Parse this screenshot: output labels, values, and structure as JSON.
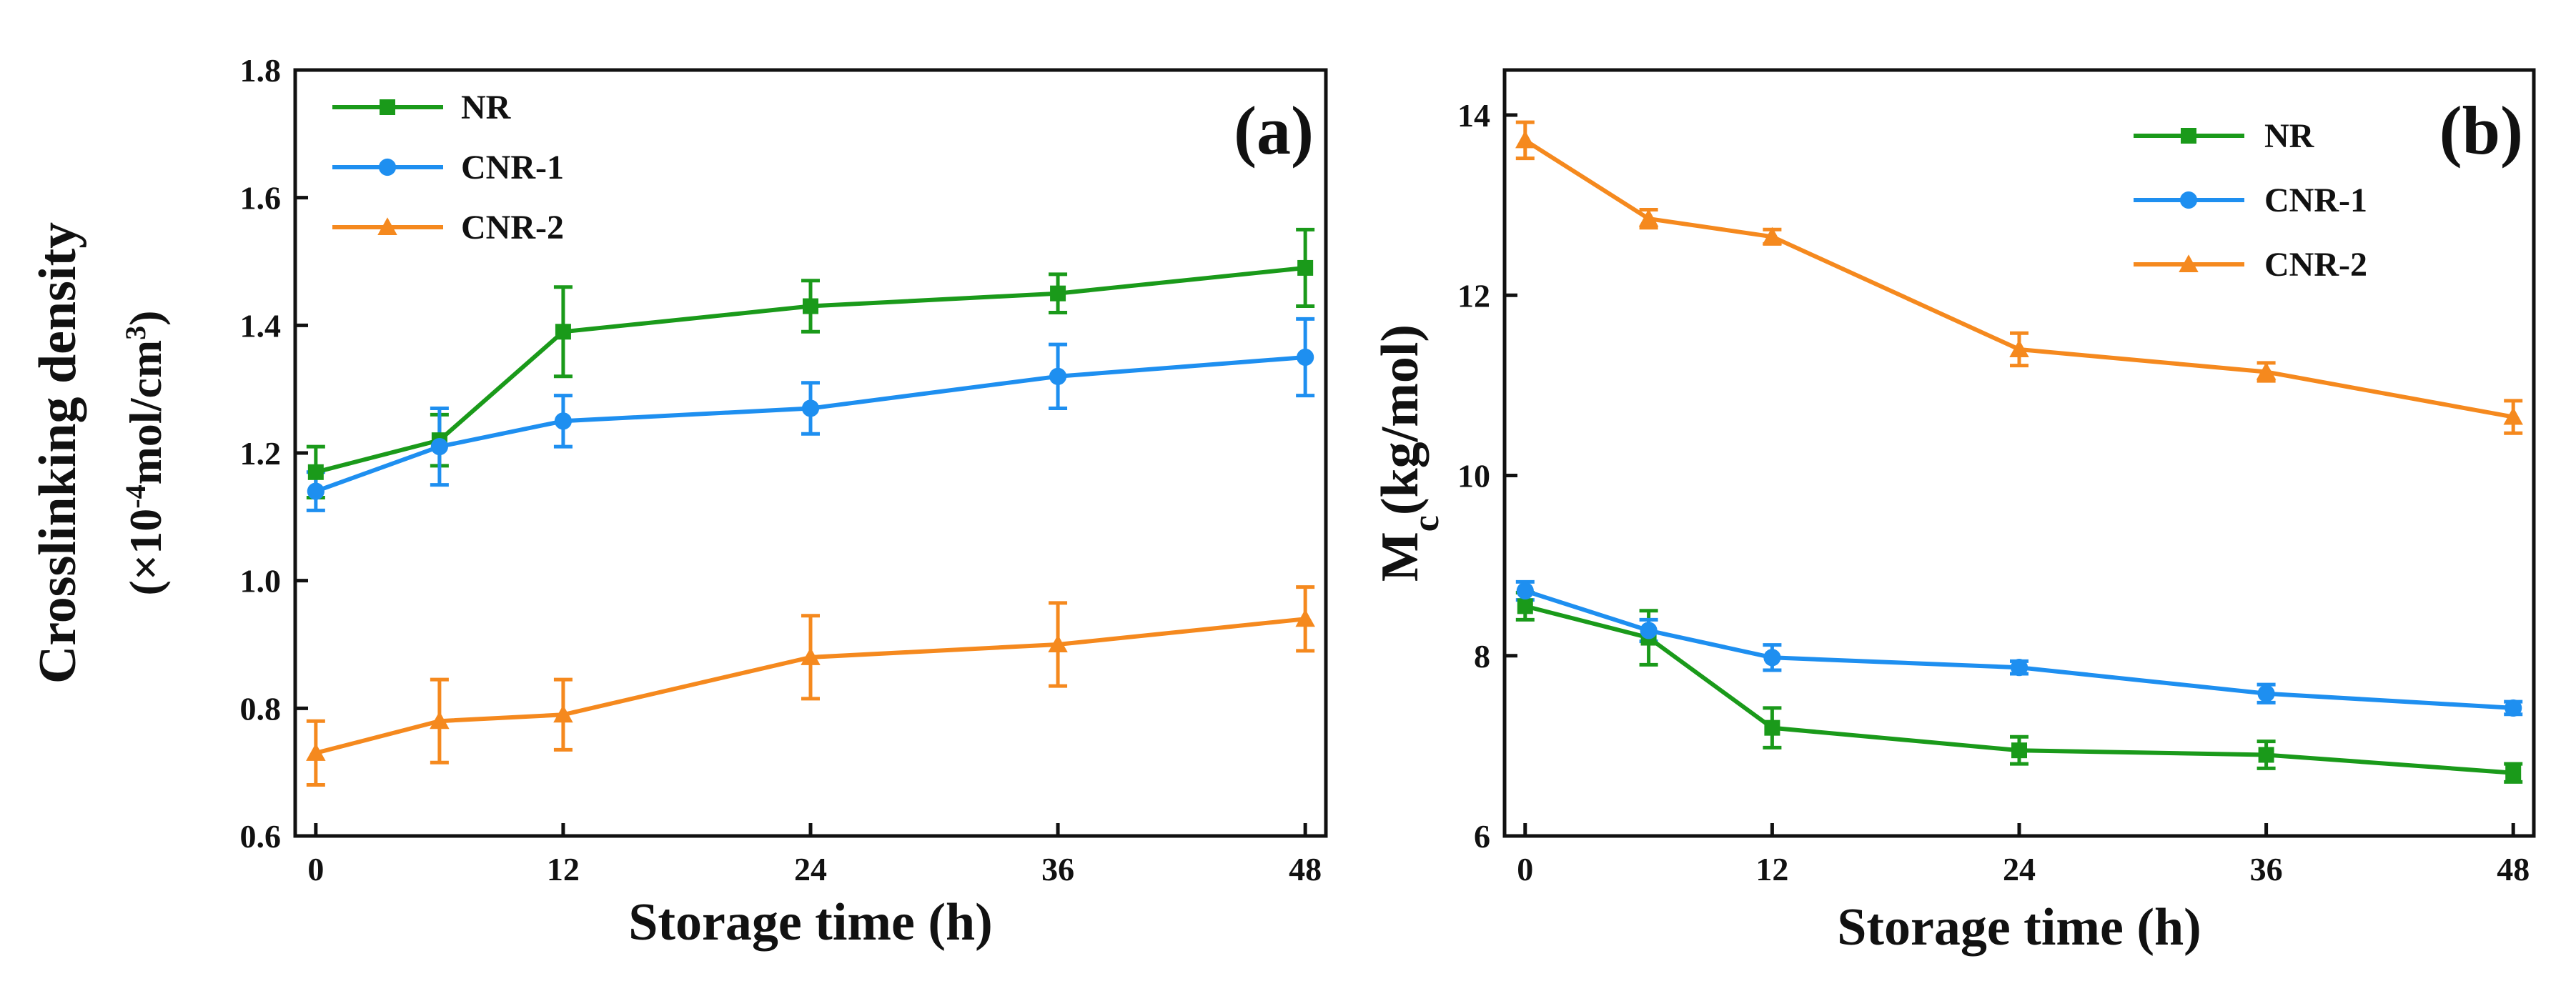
{
  "colors": {
    "NR": "#1a9a1a",
    "CNR-1": "#1e8ff0",
    "CNR-2": "#f5891e"
  },
  "chart_data": [
    {
      "type": "line",
      "panel_label": "(a)",
      "xlabel": "Storage time (h)",
      "ylabel_line1": "Crosslinking density",
      "ylabel_line2": {
        "prefix": "(×10",
        "exp": "-4",
        "mid": "mol/cm",
        "exp2": "3",
        "suffix": ")"
      },
      "xlim": [
        -1,
        49
      ],
      "ylim": [
        0.6,
        1.8
      ],
      "xticks": [
        0,
        12,
        24,
        36,
        48
      ],
      "yticks": [
        0.6,
        0.8,
        1.0,
        1.2,
        1.4,
        1.6,
        1.8
      ],
      "ytick_labels": [
        "0.6",
        "0.8",
        "1.0",
        "1.2",
        "1.4",
        "1.6",
        "1.8"
      ],
      "legend_position": "top-left",
      "x": [
        0,
        6,
        12,
        24,
        36,
        48
      ],
      "series": [
        {
          "name": "NR",
          "marker": "square",
          "values": [
            1.17,
            1.22,
            1.39,
            1.43,
            1.45,
            1.49
          ],
          "errors": [
            0.04,
            0.04,
            0.07,
            0.04,
            0.03,
            0.06
          ]
        },
        {
          "name": "CNR-1",
          "marker": "circle",
          "values": [
            1.14,
            1.21,
            1.25,
            1.27,
            1.32,
            1.35
          ],
          "errors": [
            0.03,
            0.06,
            0.04,
            0.04,
            0.05,
            0.06
          ]
        },
        {
          "name": "CNR-2",
          "marker": "triangle",
          "values": [
            0.73,
            0.78,
            0.79,
            0.88,
            0.9,
            0.94
          ],
          "errors": [
            0.05,
            0.065,
            0.055,
            0.065,
            0.065,
            0.05
          ]
        }
      ]
    },
    {
      "type": "line",
      "panel_label": "(b)",
      "xlabel": "Storage time (h)",
      "ylabel": {
        "main": "M",
        "sub": "c",
        "rest": "(kg/mol)"
      },
      "xlim": [
        -1,
        49
      ],
      "ylim": [
        6,
        14.5
      ],
      "xticks": [
        0,
        12,
        24,
        36,
        48
      ],
      "yticks": [
        6,
        8,
        10,
        12,
        14
      ],
      "ytick_labels": [
        "6",
        "8",
        "10",
        "12",
        "14"
      ],
      "legend_position": "top-right",
      "x": [
        0,
        6,
        12,
        24,
        36,
        48
      ],
      "series": [
        {
          "name": "NR",
          "marker": "square",
          "values": [
            8.55,
            8.2,
            7.2,
            6.95,
            6.9,
            6.7
          ],
          "errors": [
            0.15,
            0.3,
            0.22,
            0.15,
            0.15,
            0.1
          ]
        },
        {
          "name": "CNR-1",
          "marker": "circle",
          "values": [
            8.72,
            8.28,
            7.98,
            7.87,
            7.58,
            7.42
          ],
          "errors": [
            0.1,
            0.12,
            0.14,
            0.07,
            0.1,
            0.07
          ]
        },
        {
          "name": "CNR-2",
          "marker": "triangle",
          "values": [
            13.72,
            12.85,
            12.65,
            11.4,
            11.15,
            10.65
          ],
          "errors": [
            0.2,
            0.1,
            0.08,
            0.18,
            0.1,
            0.18
          ]
        }
      ]
    }
  ]
}
